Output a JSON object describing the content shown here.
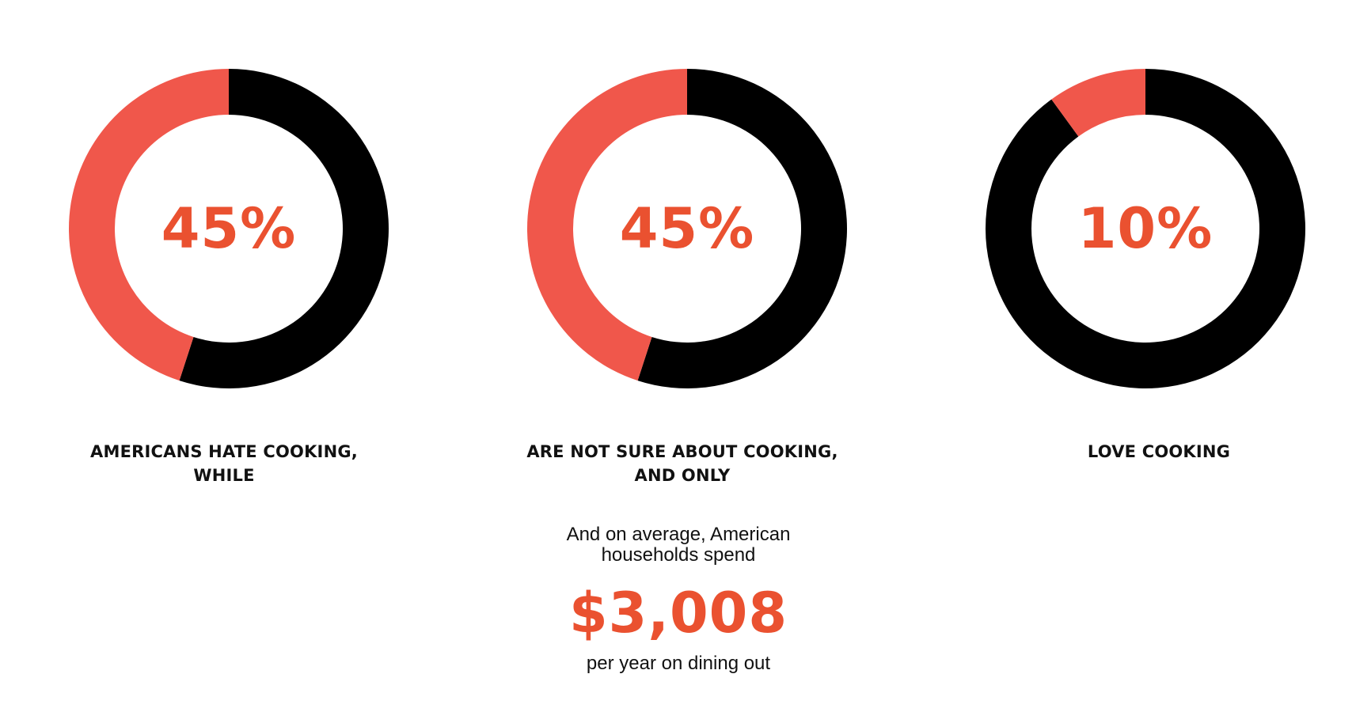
{
  "colors": {
    "highlight": "#f0574b",
    "remainder": "#000000",
    "accent_text": "#ea5130"
  },
  "chart_data": [
    {
      "type": "pie",
      "style": "donut",
      "value_label": "45%",
      "caption_lines": [
        "AMERICANS HATE COOKING,",
        "WHILE"
      ],
      "slices": [
        {
          "label": "AMERICANS HATE COOKING",
          "value": 45,
          "color": "#f0574b"
        },
        {
          "label": "",
          "value": 55,
          "color": "#000000"
        }
      ]
    },
    {
      "type": "pie",
      "style": "donut",
      "value_label": "45%",
      "caption_lines": [
        "ARE NOT SURE ABOUT COOKING,",
        "AND ONLY"
      ],
      "slices": [
        {
          "label": "ARE NOT SURE ABOUT COOKING",
          "value": 45,
          "color": "#f0574b"
        },
        {
          "label": "",
          "value": 55,
          "color": "#000000"
        }
      ]
    },
    {
      "type": "pie",
      "style": "donut",
      "value_label": "10%",
      "caption_lines": [
        "LOVE COOKING"
      ],
      "slices": [
        {
          "label": "LOVE COOKING",
          "value": 10,
          "color": "#f0574b"
        },
        {
          "label": "",
          "value": 90,
          "color": "#000000"
        }
      ]
    }
  ],
  "footer": {
    "intro_lines": [
      "And on average, American",
      "households spend"
    ],
    "amount": "$3,008",
    "caption": "per year on dining out"
  }
}
